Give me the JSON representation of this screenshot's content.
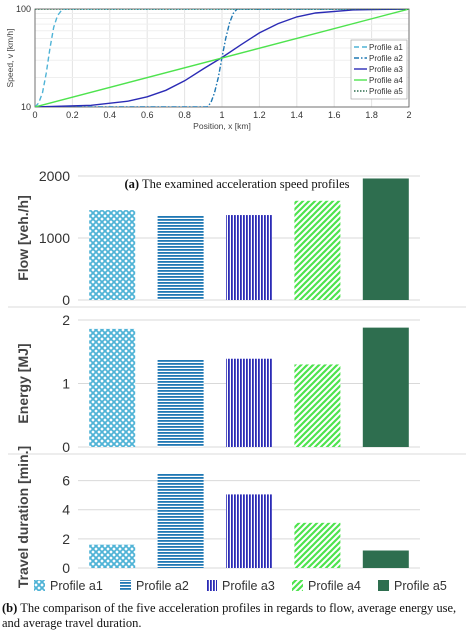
{
  "captions": {
    "a_label": "(a)",
    "a_text": "The examined acceleration speed profiles",
    "b_label": "(b)",
    "b_text": "The comparison of the five acceleration profiles in regards to flow, average energy use, and average travel duration."
  },
  "colors": {
    "a1": "#4fb3d6",
    "a2": "#1f78b4",
    "a3": "#2b2bb5",
    "a4": "#4ee34e",
    "a5": "#2e6e4f"
  },
  "chart_data": [
    {
      "type": "line",
      "xlabel": "Position, x [km]",
      "ylabel": "Speed, v [km/h]",
      "xlim": [
        0,
        2
      ],
      "ylim": [
        10,
        100
      ],
      "yscale": "log",
      "xticks": [
        "0",
        "0.2",
        "0.4",
        "0.6",
        "0.8",
        "1",
        "1.2",
        "1.4",
        "1.6",
        "1.8",
        "2"
      ],
      "yticks": [
        "10",
        "100"
      ],
      "grid": true,
      "legend": "right",
      "series": [
        {
          "name": "Profile a1",
          "style": "dashed",
          "x": [
            0,
            0.02,
            0.04,
            0.06,
            0.08,
            0.1,
            0.12,
            0.14,
            0.16,
            2
          ],
          "y": [
            10,
            11,
            14,
            22,
            40,
            65,
            85,
            96,
            100,
            100
          ]
        },
        {
          "name": "Profile a2",
          "style": "dash-dot",
          "x": [
            0,
            0.92,
            0.94,
            0.96,
            0.98,
            1.0,
            1.02,
            1.04,
            1.06,
            1.08,
            2
          ],
          "y": [
            10,
            10,
            11,
            14,
            20,
            32,
            50,
            72,
            90,
            100,
            100
          ]
        },
        {
          "name": "Profile a3",
          "style": "solid",
          "x": [
            0,
            0.3,
            0.5,
            0.6,
            0.7,
            0.8,
            0.9,
            1.0,
            1.1,
            1.2,
            1.3,
            1.4,
            1.5,
            1.7,
            2
          ],
          "y": [
            10,
            10.4,
            11.5,
            12.7,
            14.8,
            18.5,
            24.5,
            32,
            43,
            57,
            71,
            83,
            91,
            98,
            100
          ]
        },
        {
          "name": "Profile a4",
          "style": "solid",
          "x": [
            0,
            2
          ],
          "y": [
            10,
            100
          ]
        },
        {
          "name": "Profile a5",
          "style": "dotted",
          "x": [
            0,
            2
          ],
          "y": [
            100,
            100
          ]
        }
      ]
    },
    {
      "type": "bar",
      "ylabel": "Flow [veh./h]",
      "ylim": [
        0,
        2000
      ],
      "yticks": [
        "0",
        "1000",
        "2000"
      ],
      "categories": [
        "Profile a1",
        "Profile a2",
        "Profile a3",
        "Profile a4",
        "Profile a5"
      ],
      "values": [
        1450,
        1360,
        1370,
        1600,
        1960
      ]
    },
    {
      "type": "bar",
      "ylabel": "Energy [MJ]",
      "ylim": [
        0,
        2
      ],
      "yticks": [
        "0",
        "1",
        "2"
      ],
      "categories": [
        "Profile a1",
        "Profile a2",
        "Profile a3",
        "Profile a4",
        "Profile a5"
      ],
      "values": [
        1.86,
        1.38,
        1.39,
        1.3,
        1.88
      ]
    },
    {
      "type": "bar",
      "ylabel": "Travel duration [min.]",
      "ylim": [
        0,
        7
      ],
      "yticks": [
        "0",
        "2",
        "4",
        "6"
      ],
      "categories": [
        "Profile a1",
        "Profile a2",
        "Profile a3",
        "Profile a4",
        "Profile a5"
      ],
      "values": [
        1.6,
        6.5,
        5.05,
        3.1,
        1.2
      ],
      "legend": "bottom"
    }
  ]
}
